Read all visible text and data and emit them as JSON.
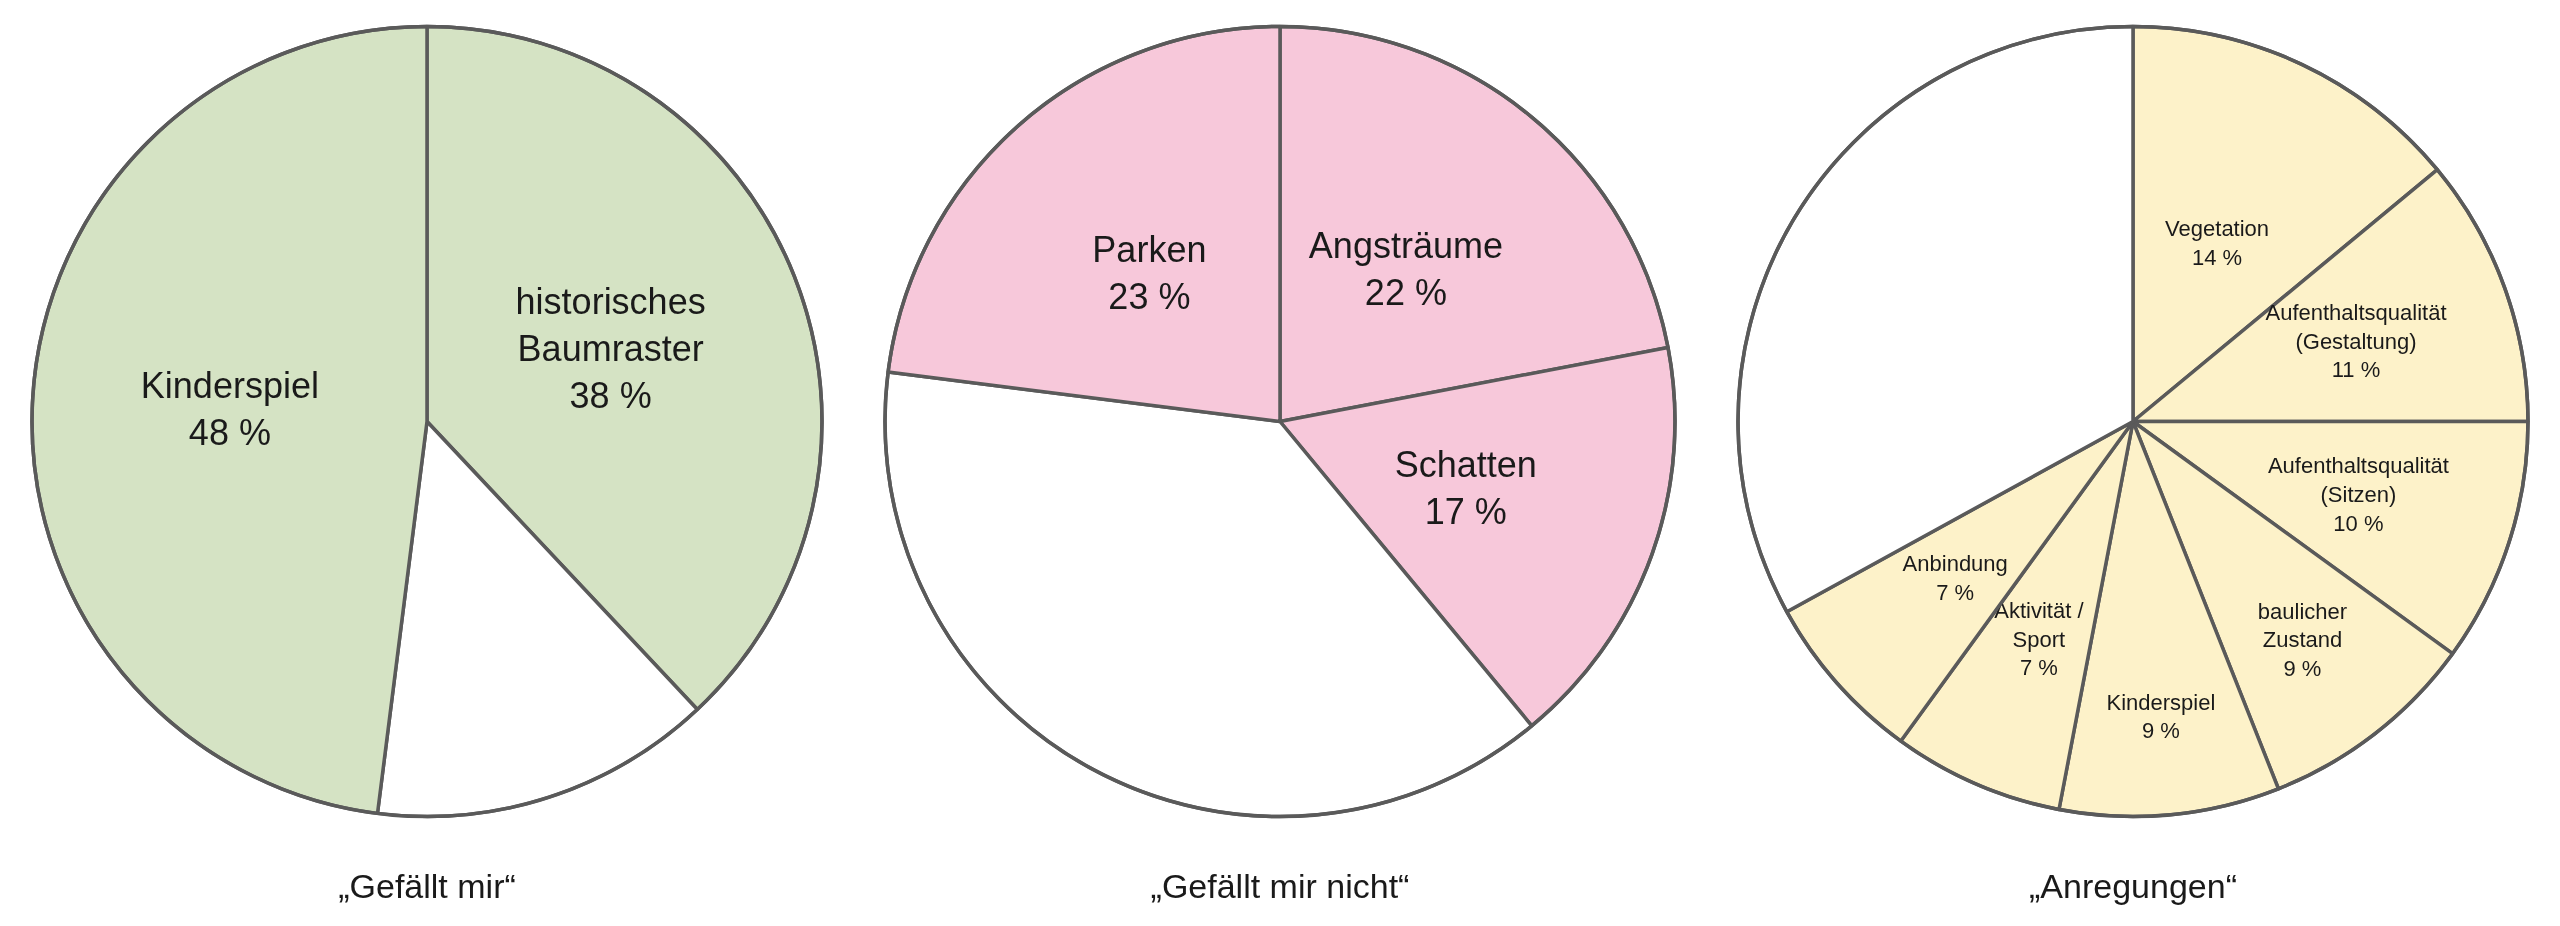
{
  "chart_data": [
    {
      "type": "pie",
      "title": "„Gefällt mir“",
      "categories": [
        "historisches\nBaumraster",
        null,
        "Kinderspiel"
      ],
      "values": [
        38,
        14,
        48
      ],
      "colors": [
        "#d5e3c4",
        "#ffffff",
        "#d5e3c4"
      ],
      "value_labels": [
        "38 %",
        null,
        "48 %"
      ]
    },
    {
      "type": "pie",
      "title": "„Gefällt mir nicht“",
      "categories": [
        "Angsträume",
        "Schatten",
        null,
        "Parken"
      ],
      "values": [
        22,
        17,
        38,
        23
      ],
      "colors": [
        "#f7c8da",
        "#f7c8da",
        "#ffffff",
        "#f7c8da"
      ],
      "value_labels": [
        "22 %",
        "17 %",
        null,
        "23 %"
      ]
    },
    {
      "type": "pie",
      "title": "„Anregungen“",
      "categories": [
        "Vegetation",
        "Aufenthaltsqualität\n(Gestaltung)",
        "Aufenthaltsqualität\n(Sitzen)",
        "baulicher\nZustand",
        "Kinderspiel",
        "Aktivität /\nSport",
        "Anbindung",
        null
      ],
      "values": [
        14,
        11,
        10,
        9,
        9,
        7,
        7,
        33
      ],
      "colors": [
        "#fdf2c9",
        "#fdf2c9",
        "#fdf2c9",
        "#fdf2c9",
        "#fdf2c9",
        "#fdf2c9",
        "#fdf2c9",
        "#ffffff"
      ],
      "value_labels": [
        "14 %",
        "11 %",
        "10 %",
        "9 %",
        "9 %",
        "7 %",
        "7 %",
        null
      ]
    }
  ]
}
